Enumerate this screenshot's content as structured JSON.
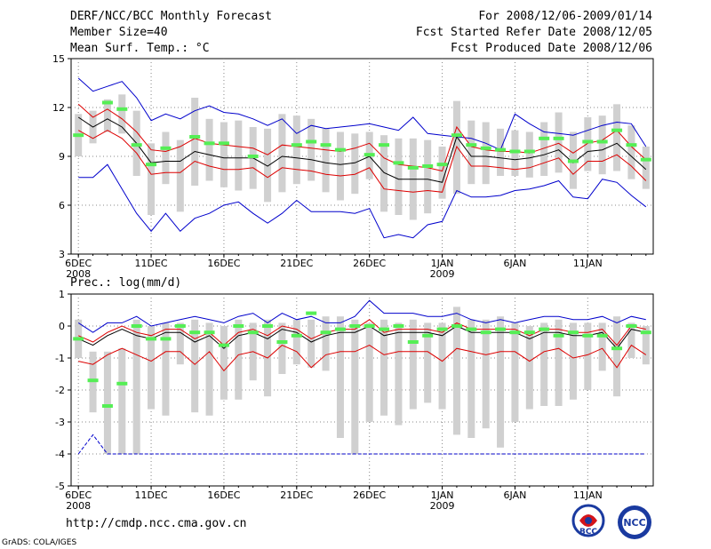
{
  "header": {
    "title": "DERF/NCC/BCC Monthly Forecast",
    "member_size": "Member Size=40",
    "variable": "Mean Surf. Temp.: °C",
    "period": "For 2008/12/06-2009/01/14",
    "started": "Fcst Started Refer Date 2008/12/05",
    "produced": "Fcst Produced Date 2008/12/06"
  },
  "footer": {
    "url": "http://cmdp.ncc.cma.gov.cn",
    "grads": "GrADS: COLA/IGES",
    "logo_left": "BCC",
    "logo_right": "NCC"
  },
  "colors": {
    "mean": "#000000",
    "spread": "#dd0000",
    "extreme": "#0000cc",
    "obs": "#55ee55",
    "box": "#d0d0d0",
    "grid": "#888888"
  },
  "chart_data": [
    {
      "type": "line",
      "title": "Mean Surf. Temp.: °C",
      "ylim": [
        3,
        15
      ],
      "yticks": [
        3,
        6,
        9,
        12,
        15
      ],
      "x_ticks": [
        "6DEC",
        "11DEC",
        "16DEC",
        "21DEC",
        "26DEC",
        "1JAN",
        "6JAN",
        "11JAN"
      ],
      "x_year_labels": [
        "2008",
        "2009"
      ],
      "days": 40,
      "series": [
        {
          "name": "max",
          "values": [
            13.8,
            13.0,
            13.3,
            13.6,
            12.6,
            11.2,
            11.6,
            11.3,
            11.8,
            12.1,
            11.7,
            11.6,
            11.3,
            10.9,
            11.3,
            10.4,
            10.9,
            10.7,
            10.8,
            10.9,
            11.0,
            10.8,
            10.6,
            11.4,
            10.4,
            10.3,
            10.2,
            10.1,
            9.8,
            9.4,
            11.6,
            11.0,
            10.5,
            10.4,
            10.3,
            10.6,
            10.9,
            11.1,
            11.0,
            9.6
          ]
        },
        {
          "name": "upper",
          "values": [
            12.2,
            11.4,
            11.9,
            11.3,
            10.5,
            9.4,
            9.3,
            9.6,
            10.1,
            9.8,
            9.7,
            9.6,
            9.5,
            9.1,
            9.7,
            9.6,
            9.5,
            9.4,
            9.3,
            9.5,
            9.8,
            8.9,
            8.5,
            8.4,
            8.3,
            8.1,
            10.8,
            9.6,
            9.4,
            9.3,
            9.3,
            9.2,
            9.5,
            9.8,
            9.2,
            9.8,
            10.0,
            10.6,
            9.6,
            8.8
          ]
        },
        {
          "name": "mean",
          "values": [
            11.4,
            10.8,
            11.3,
            10.8,
            9.8,
            8.6,
            8.7,
            8.7,
            9.3,
            9.1,
            8.9,
            8.9,
            8.9,
            8.4,
            9.0,
            8.9,
            8.8,
            8.6,
            8.5,
            8.6,
            9.0,
            8.0,
            7.6,
            7.6,
            7.6,
            7.4,
            10.2,
            9.0,
            9.0,
            8.9,
            8.8,
            8.9,
            9.1,
            9.4,
            8.6,
            9.3,
            9.4,
            9.8,
            9.0,
            8.2
          ]
        },
        {
          "name": "lower",
          "values": [
            10.6,
            10.1,
            10.6,
            10.1,
            9.2,
            7.9,
            8.0,
            8.0,
            8.7,
            8.4,
            8.2,
            8.2,
            8.3,
            7.7,
            8.3,
            8.2,
            8.1,
            7.9,
            7.8,
            7.9,
            8.3,
            7.0,
            6.9,
            6.8,
            6.9,
            6.8,
            9.6,
            8.4,
            8.4,
            8.3,
            8.2,
            8.3,
            8.6,
            8.9,
            7.9,
            8.7,
            8.7,
            9.1,
            8.4,
            7.5
          ]
        },
        {
          "name": "min",
          "values": [
            7.7,
            7.7,
            8.5,
            7.0,
            5.5,
            4.4,
            5.5,
            4.4,
            5.2,
            5.5,
            6.0,
            6.2,
            5.5,
            4.9,
            5.5,
            6.3,
            5.6,
            5.6,
            5.6,
            5.5,
            5.8,
            4.0,
            4.2,
            4.0,
            4.8,
            5.0,
            6.9,
            6.5,
            6.5,
            6.6,
            6.9,
            7.0,
            7.2,
            7.5,
            6.5,
            6.4,
            7.6,
            7.4,
            6.6,
            5.9
          ]
        }
      ],
      "boxes": [
        [
          9.0,
          11.6
        ],
        [
          9.8,
          11.8
        ],
        [
          10.5,
          12.5
        ],
        [
          10.4,
          12.8
        ],
        [
          7.8,
          11.8
        ],
        [
          5.4,
          9.8
        ],
        [
          7.3,
          10.5
        ],
        [
          5.6,
          10.0
        ],
        [
          7.2,
          12.6
        ],
        [
          7.5,
          11.3
        ],
        [
          7.1,
          11.1
        ],
        [
          6.9,
          11.2
        ],
        [
          7.0,
          10.8
        ],
        [
          6.2,
          10.7
        ],
        [
          6.8,
          11.6
        ],
        [
          7.3,
          11.5
        ],
        [
          7.5,
          11.3
        ],
        [
          6.8,
          10.7
        ],
        [
          6.3,
          10.5
        ],
        [
          6.7,
          10.4
        ],
        [
          7.6,
          10.5
        ],
        [
          5.6,
          10.3
        ],
        [
          5.4,
          10.1
        ],
        [
          5.1,
          10.1
        ],
        [
          5.5,
          10.0
        ],
        [
          6.4,
          9.6
        ],
        [
          6.7,
          12.4
        ],
        [
          7.3,
          11.2
        ],
        [
          7.3,
          11.1
        ],
        [
          7.8,
          10.7
        ],
        [
          7.8,
          10.6
        ],
        [
          7.7,
          10.5
        ],
        [
          7.8,
          11.1
        ],
        [
          8.0,
          11.7
        ],
        [
          7.0,
          10.5
        ],
        [
          8.1,
          11.4
        ],
        [
          7.9,
          11.5
        ],
        [
          8.1,
          12.2
        ],
        [
          7.6,
          10.9
        ],
        [
          7.0,
          9.6
        ]
      ],
      "obs": [
        10.3,
        null,
        12.3,
        11.9,
        9.7,
        8.5,
        9.5,
        null,
        10.2,
        9.8,
        9.8,
        null,
        9.0,
        null,
        null,
        9.7,
        9.9,
        9.7,
        9.4,
        null,
        9.1,
        9.7,
        8.6,
        8.3,
        8.4,
        8.5,
        10.3,
        9.7,
        9.5,
        9.4,
        9.3,
        9.3,
        10.1,
        10.1,
        8.7,
        9.9,
        9.9,
        10.6,
        9.7,
        8.8
      ]
    },
    {
      "type": "line",
      "title": "Prec.: log(mm/d)",
      "ylim": [
        -5,
        1
      ],
      "yticks": [
        -5,
        -4,
        -3,
        -2,
        -1,
        0,
        1
      ],
      "x_ticks": [
        "6DEC",
        "11DEC",
        "16DEC",
        "21DEC",
        "26DEC",
        "1JAN",
        "6JAN",
        "11JAN"
      ],
      "x_year_labels": [
        "2008",
        "2009"
      ],
      "days": 40,
      "series": [
        {
          "name": "max",
          "values": [
            -4.0,
            -3.4,
            -4.0,
            -4.0,
            -4.0,
            -4.0,
            -4.0,
            -4.0,
            -4.0,
            -4.0,
            -4.0,
            -4.0,
            -4.0,
            -4.0,
            -4.0,
            -4.0,
            -4.0,
            -4.0,
            -4.0,
            -4.0,
            -4.0,
            -4.0,
            -4.0,
            -4.0,
            -4.0,
            -4.0,
            -4.0,
            -4.0,
            -4.0,
            -4.0,
            -4.0,
            -4.0,
            -4.0,
            -4.0,
            -4.0,
            -4.0,
            -4.0,
            -4.0,
            -4.0,
            -4.0
          ]
        },
        {
          "name": "top",
          "values": [
            0.1,
            -0.2,
            0.1,
            0.1,
            0.3,
            0.0,
            0.1,
            0.2,
            0.3,
            0.2,
            0.1,
            0.3,
            0.4,
            0.1,
            0.4,
            0.2,
            0.3,
            0.1,
            0.1,
            0.3,
            0.8,
            0.4,
            0.4,
            0.4,
            0.3,
            0.3,
            0.4,
            0.2,
            0.1,
            0.2,
            0.1,
            0.2,
            0.3,
            0.3,
            0.2,
            0.2,
            0.3,
            0.1,
            0.3,
            0.2
          ]
        },
        {
          "name": "upper",
          "values": [
            -0.3,
            -0.5,
            -0.2,
            0.0,
            -0.2,
            -0.3,
            -0.1,
            -0.1,
            -0.4,
            -0.2,
            -0.6,
            -0.2,
            -0.1,
            -0.3,
            0.0,
            -0.1,
            -0.4,
            -0.2,
            -0.1,
            -0.1,
            0.2,
            -0.2,
            -0.1,
            -0.1,
            -0.1,
            -0.2,
            0.1,
            -0.1,
            -0.1,
            -0.1,
            -0.1,
            -0.3,
            -0.1,
            -0.1,
            -0.2,
            -0.2,
            -0.1,
            -0.6,
            0.0,
            -0.1
          ]
        },
        {
          "name": "mean",
          "values": [
            -0.4,
            -0.6,
            -0.3,
            -0.1,
            -0.3,
            -0.4,
            -0.2,
            -0.2,
            -0.5,
            -0.3,
            -0.7,
            -0.3,
            -0.2,
            -0.4,
            -0.1,
            -0.2,
            -0.5,
            -0.3,
            -0.2,
            -0.2,
            0.0,
            -0.3,
            -0.2,
            -0.2,
            -0.2,
            -0.3,
            0.0,
            -0.2,
            -0.2,
            -0.2,
            -0.2,
            -0.4,
            -0.2,
            -0.2,
            -0.3,
            -0.3,
            -0.2,
            -0.7,
            -0.1,
            -0.2
          ]
        },
        {
          "name": "lower",
          "values": [
            -1.1,
            -1.2,
            -0.9,
            -0.7,
            -0.9,
            -1.1,
            -0.8,
            -0.8,
            -1.2,
            -0.8,
            -1.4,
            -0.9,
            -0.8,
            -1.0,
            -0.6,
            -0.8,
            -1.3,
            -0.9,
            -0.8,
            -0.8,
            -0.6,
            -0.9,
            -0.8,
            -0.8,
            -0.8,
            -1.1,
            -0.7,
            -0.8,
            -0.9,
            -0.8,
            -0.8,
            -1.1,
            -0.8,
            -0.7,
            -1.0,
            -0.9,
            -0.7,
            -1.3,
            -0.6,
            -0.9
          ]
        }
      ],
      "boxes": [
        [
          -1.0,
          0.2
        ],
        [
          -2.7,
          -0.8
        ],
        [
          -4.0,
          -0.8
        ],
        [
          -4.0,
          -0.7
        ],
        [
          -4.0,
          0.2
        ],
        [
          -2.6,
          0.0
        ],
        [
          -2.8,
          0.1
        ],
        [
          -1.2,
          0.1
        ],
        [
          -2.7,
          0.2
        ],
        [
          -2.8,
          0.1
        ],
        [
          -2.3,
          0.0
        ],
        [
          -2.3,
          0.2
        ],
        [
          -1.7,
          0.1
        ],
        [
          -2.2,
          0.2
        ],
        [
          -1.5,
          0.1
        ],
        [
          -1.2,
          0.2
        ],
        [
          -1.3,
          0.2
        ],
        [
          -1.4,
          0.3
        ],
        [
          -3.5,
          0.3
        ],
        [
          -4.0,
          0.2
        ],
        [
          -3.0,
          0.1
        ],
        [
          -2.8,
          0.2
        ],
        [
          -3.1,
          0.1
        ],
        [
          -2.6,
          0.2
        ],
        [
          -2.4,
          0.1
        ],
        [
          -2.6,
          0.1
        ],
        [
          -3.4,
          0.6
        ],
        [
          -3.5,
          0.2
        ],
        [
          -3.2,
          0.2
        ],
        [
          -3.8,
          0.3
        ],
        [
          -3.0,
          0.1
        ],
        [
          -2.6,
          0.0
        ],
        [
          -2.5,
          0.1
        ],
        [
          -2.5,
          0.2
        ],
        [
          -2.3,
          0.1
        ],
        [
          -2.0,
          0.1
        ],
        [
          -1.4,
          0.1
        ],
        [
          -2.2,
          0.3
        ],
        [
          -1.0,
          0.1
        ],
        [
          -1.2,
          0.0
        ]
      ],
      "obs": [
        -0.4,
        -1.7,
        -2.5,
        -1.8,
        0.0,
        -0.4,
        -0.4,
        0.0,
        -0.2,
        -0.2,
        -0.6,
        0.0,
        -0.2,
        0.0,
        -0.5,
        -0.3,
        0.4,
        -0.2,
        -0.1,
        0.0,
        0.0,
        -0.1,
        0.0,
        -0.5,
        -0.3,
        -0.1,
        0.0,
        -0.1,
        -0.2,
        -0.1,
        -0.2,
        -0.2,
        -0.1,
        -0.3,
        -0.2,
        -0.3,
        -0.3,
        -0.7,
        0.0,
        -0.2
      ]
    }
  ]
}
